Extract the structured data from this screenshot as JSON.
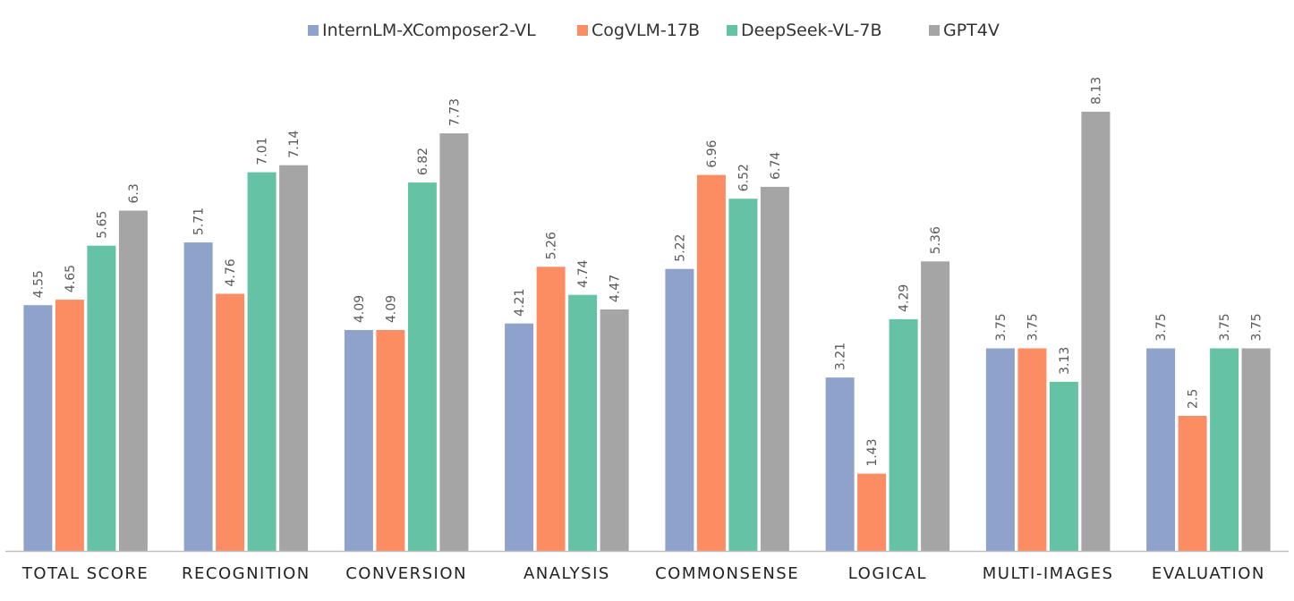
{
  "chart_data": {
    "type": "bar",
    "categories": [
      "TOTAL SCORE",
      "RECOGNITION",
      "CONVERSION",
      "ANALYSIS",
      "COMMONSENSE",
      "LOGICAL",
      "MULTI-IMAGES",
      "EVALUATION"
    ],
    "series": [
      {
        "name": "InternLM-XComposer2-VL",
        "color": "#8fa2cc",
        "values": [
          4.55,
          5.71,
          4.09,
          4.21,
          5.22,
          3.21,
          3.75,
          3.75
        ]
      },
      {
        "name": "CogVLM-17B",
        "color": "#fc8d62",
        "values": [
          4.65,
          4.76,
          4.09,
          5.26,
          6.96,
          1.43,
          3.75,
          2.5
        ]
      },
      {
        "name": "DeepSeek-VL-7B",
        "color": "#66c2a5",
        "values": [
          5.65,
          7.01,
          6.82,
          4.74,
          6.52,
          4.29,
          3.13,
          3.75
        ]
      },
      {
        "name": "GPT4V",
        "color": "#a5a5a5",
        "values": [
          6.3,
          7.14,
          7.73,
          4.47,
          6.74,
          5.36,
          8.13,
          3.75
        ]
      }
    ],
    "value_labels": [
      [
        "4.55",
        "5.71",
        "4.09",
        "4.21",
        "5.22",
        "3.21",
        "3.75",
        "3.75"
      ],
      [
        "4.65",
        "4.76",
        "4.09",
        "5.26",
        "6.96",
        "1.43",
        "3.75",
        "2.5"
      ],
      [
        "5.65",
        "7.01",
        "6.82",
        "4.74",
        "6.52",
        "4.29",
        "3.13",
        "3.75"
      ],
      [
        "6.3",
        "7.14",
        "7.73",
        "4.47",
        "6.74",
        "5.36",
        "8.13",
        "3.75"
      ]
    ],
    "title": "",
    "xlabel": "",
    "ylabel": "",
    "ylim": [
      0,
      9
    ],
    "grid": false,
    "legend_position": "top-center"
  }
}
